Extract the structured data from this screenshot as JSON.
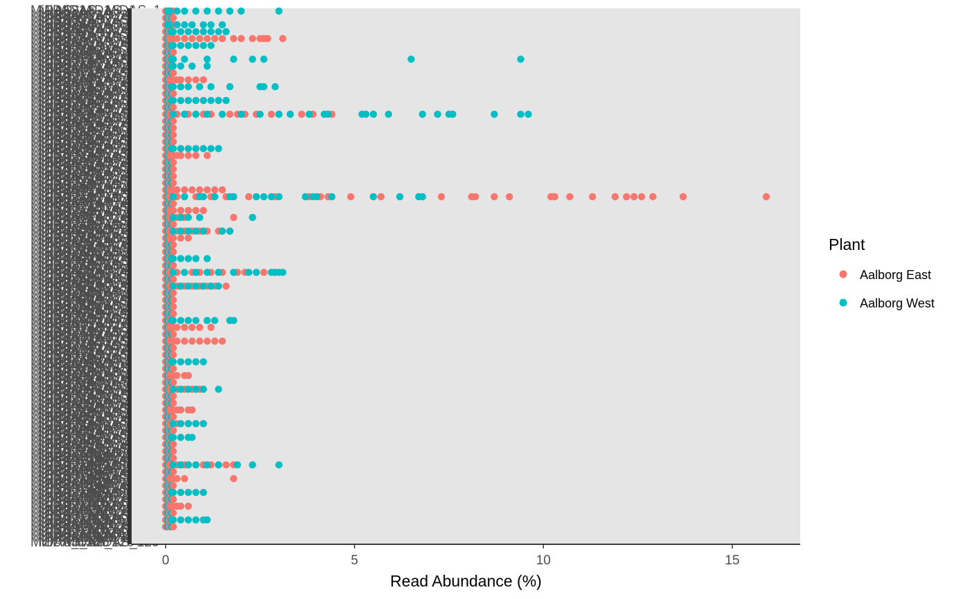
{
  "chart_data": {
    "type": "scatter",
    "xlabel": "Read Abundance (%)",
    "ylabel": "",
    "xlim": [
      -0.9,
      16.8
    ],
    "x_ticks": [
      0,
      5,
      10,
      15
    ],
    "x_tick_labels": [
      "0",
      "5",
      "10",
      "15"
    ],
    "grid": false,
    "legend": {
      "title": "Plant",
      "placement": "right"
    },
    "y_tick_note": "Overplotted, illegible MiDAS taxon labels (one per row)",
    "y_tick_label_prefix": "MiDAS",
    "categories_count": 120,
    "series": [
      {
        "name": "Aalborg East",
        "color": "#F8766D",
        "points": [
          {
            "row": 4,
            "x": [
              0.1,
              0.2,
              0.3,
              0.5,
              0.7,
              0.9,
              1.1,
              1.3,
              1.5,
              1.8,
              2.0,
              2.3,
              2.5,
              2.6,
              2.7,
              3.1
            ]
          },
          {
            "row": 10,
            "x": [
              0.1,
              0.2,
              0.3,
              0.4,
              0.6,
              0.8,
              1.0
            ]
          },
          {
            "row": 15,
            "x": [
              0.1,
              0.2,
              0.3,
              0.5,
              0.6,
              0.8,
              1.0,
              1.2,
              1.5,
              1.7,
              1.9,
              2.1,
              2.4,
              2.8,
              3.0,
              3.3,
              3.6,
              3.9,
              4.3,
              4.4
            ]
          },
          {
            "row": 21,
            "x": [
              0.1,
              0.2,
              0.3,
              0.4,
              0.6,
              0.8,
              1.1
            ]
          },
          {
            "row": 26,
            "x": [
              0.1,
              0.2,
              0.3,
              0.5,
              0.7,
              0.9,
              1.1,
              1.3,
              1.5
            ]
          },
          {
            "row": 27,
            "x": [
              0.1,
              0.2,
              0.3,
              0.5,
              0.8,
              1.2,
              1.6,
              2.2,
              2.9,
              3.8,
              4.1,
              4.3,
              4.9,
              5.5,
              5.7,
              7.3,
              8.1,
              8.2,
              8.7,
              9.1,
              10.2,
              10.3,
              10.7,
              11.3,
              11.9,
              12.2,
              12.4,
              12.6,
              12.9,
              13.7,
              15.9
            ]
          },
          {
            "row": 29,
            "x": [
              0.1,
              0.2,
              0.4,
              0.6,
              0.8,
              1.0
            ]
          },
          {
            "row": 30,
            "x": [
              0.1,
              0.3,
              0.5,
              1.8
            ]
          },
          {
            "row": 32,
            "x": [
              0.1,
              0.2,
              0.3,
              0.5,
              0.7,
              0.9,
              1.1,
              1.4,
              1.5,
              1.7
            ]
          },
          {
            "row": 33,
            "x": [
              0.1,
              0.2,
              0.4,
              0.6
            ]
          },
          {
            "row": 38,
            "x": [
              0.1,
              0.2,
              0.3,
              0.5,
              0.7,
              0.9,
              1.2,
              1.5,
              1.9,
              2.1,
              2.6
            ]
          },
          {
            "row": 40,
            "x": [
              0.1,
              0.2,
              0.3,
              0.5,
              0.7,
              0.9,
              1.1,
              1.3,
              1.6
            ]
          },
          {
            "row": 46,
            "x": [
              0.1,
              0.2,
              0.3,
              0.5,
              0.7,
              0.9,
              1.2
            ]
          },
          {
            "row": 48,
            "x": [
              0.1,
              0.2,
              0.3,
              0.5,
              0.7,
              0.9,
              1.1,
              1.3,
              1.5
            ]
          },
          {
            "row": 53,
            "x": [
              0.1,
              0.2,
              0.3,
              0.5,
              0.6
            ]
          },
          {
            "row": 55,
            "x": [
              0.1,
              0.2,
              0.3,
              0.5,
              0.7,
              0.9
            ]
          },
          {
            "row": 58,
            "x": [
              0.1,
              0.2,
              0.3,
              0.4,
              0.6,
              0.7
            ]
          },
          {
            "row": 60,
            "x": [
              0.1,
              0.3,
              0.4,
              0.6,
              0.8,
              1.0
            ]
          },
          {
            "row": 66,
            "x": [
              0.1,
              0.2,
              0.3,
              0.5,
              0.6,
              0.8,
              1.0,
              1.2,
              1.4,
              1.6,
              1.8
            ]
          },
          {
            "row": 68,
            "x": [
              0.1,
              0.3,
              0.5,
              1.8
            ]
          },
          {
            "row": 72,
            "x": [
              0.1,
              0.2,
              0.3,
              0.4,
              0.6
            ]
          }
        ]
      },
      {
        "name": "Aalborg West",
        "color": "#00BFC4",
        "points": [
          {
            "row": 0,
            "x": [
              0.1,
              0.3,
              0.5,
              0.8,
              1.1,
              1.4,
              1.7,
              2.0,
              3.0
            ]
          },
          {
            "row": 2,
            "x": [
              0.1,
              0.3,
              0.5,
              0.7,
              1.0,
              1.2,
              1.5
            ]
          },
          {
            "row": 3,
            "x": [
              0.2,
              0.4,
              0.6,
              0.8,
              1.0,
              1.2,
              1.4,
              1.6
            ]
          },
          {
            "row": 5,
            "x": [
              0.2,
              0.4,
              0.6,
              0.8,
              1.0,
              1.2
            ]
          },
          {
            "row": 7,
            "x": [
              0.2,
              0.5,
              1.1,
              1.8,
              2.3,
              2.6,
              6.5,
              9.4
            ]
          },
          {
            "row": 8,
            "x": [
              0.2,
              0.4,
              0.7,
              1.1
            ]
          },
          {
            "row": 11,
            "x": [
              0.2,
              0.4,
              0.6,
              0.9,
              1.2,
              1.7,
              2.5,
              2.6,
              2.9
            ]
          },
          {
            "row": 13,
            "x": [
              0.2,
              0.4,
              0.6,
              0.8,
              1.0,
              1.2,
              1.4,
              1.6
            ]
          },
          {
            "row": 15,
            "x": [
              0.2,
              0.5,
              0.8,
              1.1,
              1.5,
              2.0,
              2.5,
              3.0,
              3.3,
              3.8,
              4.2,
              4.3,
              5.2,
              5.3,
              5.5,
              5.9,
              6.8,
              7.2,
              7.5,
              7.6,
              8.7,
              9.4,
              9.6
            ]
          },
          {
            "row": 20,
            "x": [
              0.2,
              0.4,
              0.6,
              0.8,
              1.0,
              1.2,
              1.4
            ]
          },
          {
            "row": 27,
            "x": [
              0.2,
              0.5,
              0.9,
              1.0,
              1.3,
              1.7,
              1.8,
              2.4,
              2.6,
              2.8,
              3.0,
              3.7,
              3.9,
              4.0,
              4.4,
              5.5,
              6.2,
              6.7,
              6.8
            ]
          },
          {
            "row": 30,
            "x": [
              0.2,
              0.4,
              0.6,
              0.9,
              2.3
            ]
          },
          {
            "row": 32,
            "x": [
              0.2,
              0.4,
              0.6,
              0.8,
              1.0,
              1.5,
              1.7
            ]
          },
          {
            "row": 36,
            "x": [
              0.2,
              0.4,
              0.6,
              0.8,
              1.1
            ]
          },
          {
            "row": 38,
            "x": [
              0.2,
              0.5,
              0.8,
              1.1,
              1.4,
              1.8,
              2.2,
              2.4,
              2.8,
              2.9,
              3.0,
              3.1
            ]
          },
          {
            "row": 40,
            "x": [
              0.2,
              0.4,
              0.6,
              0.8,
              1.0,
              1.2,
              1.4
            ]
          },
          {
            "row": 45,
            "x": [
              0.2,
              0.4,
              0.6,
              0.8,
              1.1,
              1.3,
              1.7,
              1.8
            ]
          },
          {
            "row": 51,
            "x": [
              0.2,
              0.4,
              0.6,
              0.8,
              1.0
            ]
          },
          {
            "row": 55,
            "x": [
              0.2,
              0.4,
              0.6,
              0.8,
              1.0,
              1.4
            ]
          },
          {
            "row": 60,
            "x": [
              0.2,
              0.4,
              0.6,
              0.8,
              1.0
            ]
          },
          {
            "row": 62,
            "x": [
              0.2,
              0.4,
              0.6,
              0.7
            ]
          },
          {
            "row": 66,
            "x": [
              0.2,
              0.4,
              0.6,
              0.8,
              1.1,
              1.4,
              1.9,
              2.3,
              3.0
            ]
          },
          {
            "row": 70,
            "x": [
              0.2,
              0.4,
              0.6,
              0.8,
              1.0
            ]
          },
          {
            "row": 74,
            "x": [
              0.2,
              0.4,
              0.6,
              0.8,
              1.0,
              1.1
            ]
          }
        ]
      }
    ]
  },
  "legend": {
    "title": "Plant",
    "items": [
      {
        "label": "Aalborg East",
        "color": "#F8766D"
      },
      {
        "label": "Aalborg West",
        "color": "#00BFC4"
      }
    ]
  },
  "axis": {
    "x_title": "Read Abundance (%)"
  }
}
